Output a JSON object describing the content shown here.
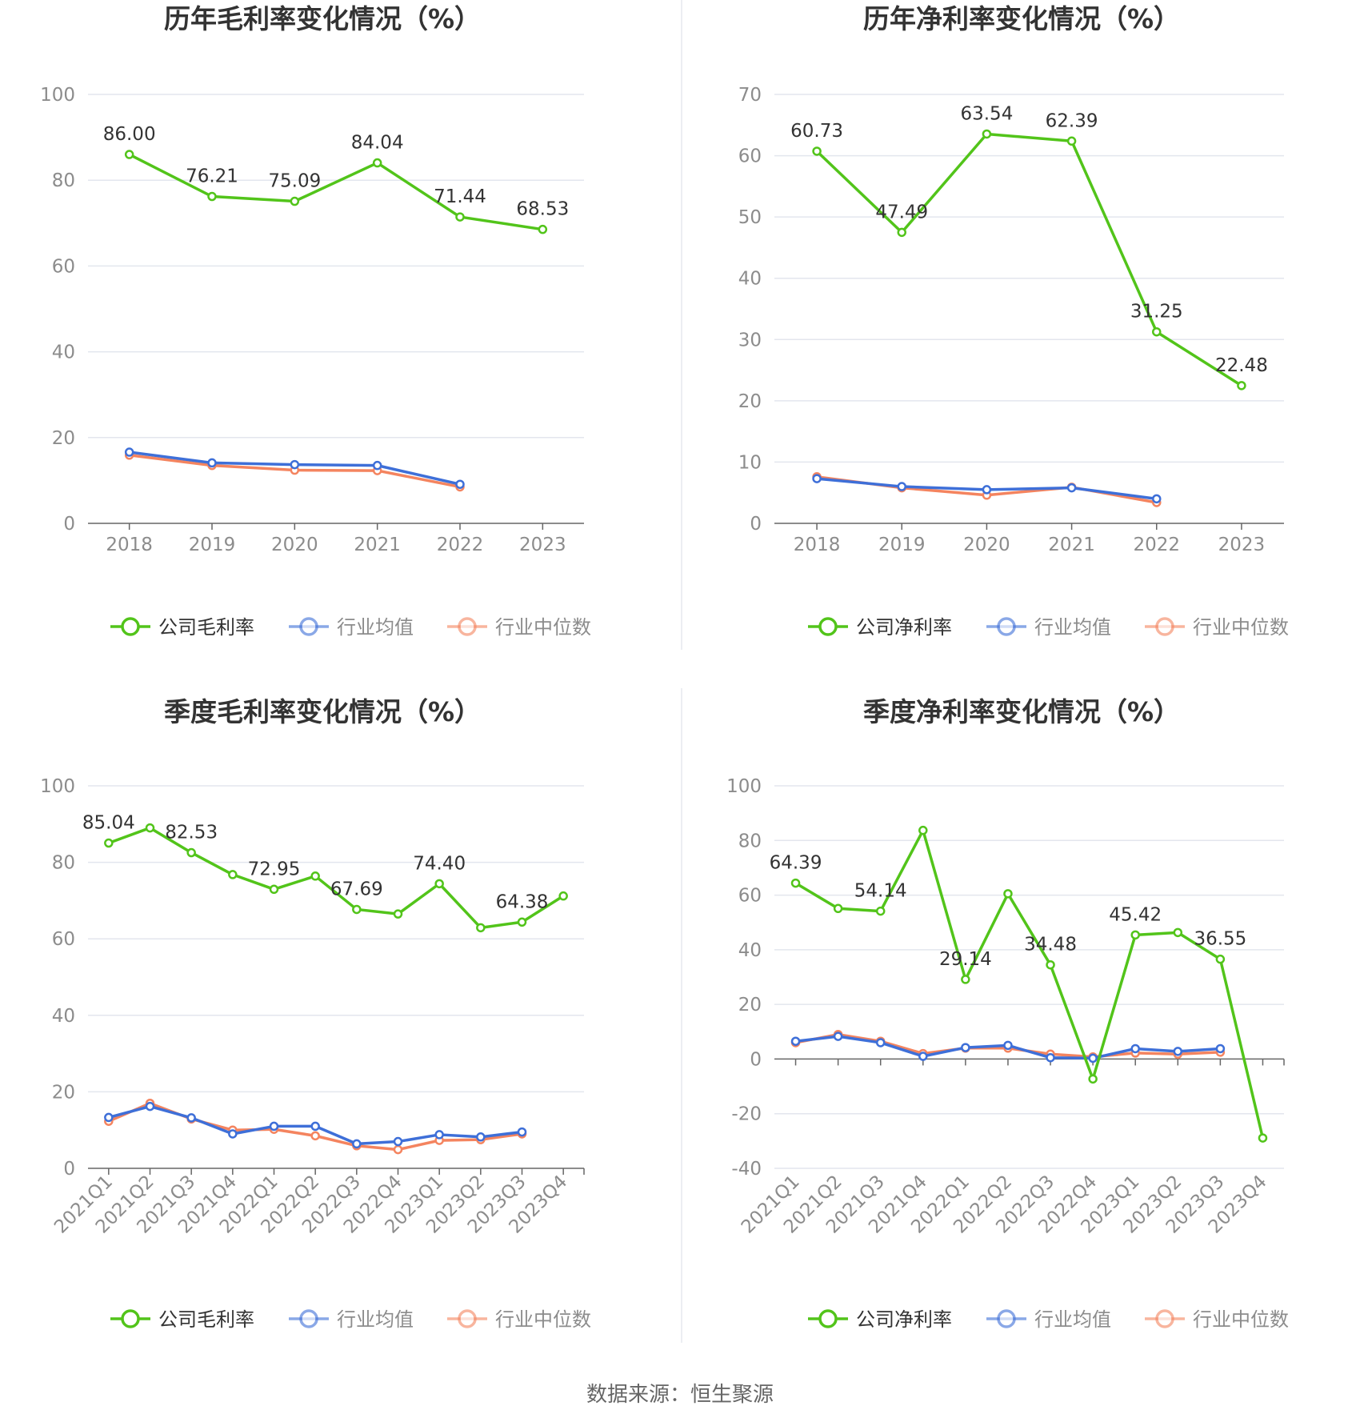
{
  "colors": {
    "company": "#52c41a",
    "industry_mean": "#3e6fd8",
    "industry_median": "#f4845f",
    "grid": "#e3e6ee",
    "axis": "#666666"
  },
  "source": "数据来源：恒生聚源",
  "chart_data": [
    {
      "type": "line",
      "title": "历年毛利率变化情况（%）",
      "categories": [
        "2018",
        "2019",
        "2020",
        "2021",
        "2022",
        "2023"
      ],
      "ylim": [
        0,
        100
      ],
      "yticks": [
        0,
        20,
        40,
        60,
        80,
        100
      ],
      "series": [
        {
          "name": "公司毛利率",
          "color": "#52c41a",
          "values": [
            86.0,
            76.21,
            75.09,
            84.04,
            71.44,
            68.53
          ],
          "labels": [
            "86.00",
            "76.21",
            "75.09",
            "84.04",
            "71.44",
            "68.53"
          ]
        },
        {
          "name": "行业均值",
          "color": "#3e6fd8",
          "values": [
            16.6,
            14.1,
            13.7,
            13.5,
            9.1,
            null
          ]
        },
        {
          "name": "行业中位数",
          "color": "#f4845f",
          "values": [
            15.9,
            13.5,
            12.4,
            12.3,
            8.5,
            null
          ]
        }
      ]
    },
    {
      "type": "line",
      "title": "历年净利率变化情况（%）",
      "categories": [
        "2018",
        "2019",
        "2020",
        "2021",
        "2022",
        "2023"
      ],
      "ylim": [
        0,
        70
      ],
      "yticks": [
        0,
        10,
        20,
        30,
        40,
        50,
        60,
        70
      ],
      "series": [
        {
          "name": "公司净利率",
          "color": "#52c41a",
          "values": [
            60.73,
            47.49,
            63.54,
            62.39,
            31.25,
            22.48
          ],
          "labels": [
            "60.73",
            "47.49",
            "63.54",
            "62.39",
            "31.25",
            "22.48"
          ]
        },
        {
          "name": "行业均值",
          "color": "#3e6fd8",
          "values": [
            7.3,
            6.0,
            5.5,
            5.8,
            4.0,
            null
          ]
        },
        {
          "name": "行业中位数",
          "color": "#f4845f",
          "values": [
            7.6,
            5.8,
            4.6,
            5.9,
            3.4,
            null
          ]
        }
      ]
    },
    {
      "type": "line",
      "title": "季度毛利率变化情况（%）",
      "categories": [
        "2021Q1",
        "2021Q2",
        "2021Q3",
        "2021Q4",
        "2022Q1",
        "2022Q2",
        "2022Q3",
        "2022Q4",
        "2023Q1",
        "2023Q2",
        "2023Q3",
        "2023Q4"
      ],
      "ylim": [
        0,
        100
      ],
      "yticks": [
        0,
        20,
        40,
        60,
        80,
        100
      ],
      "series": [
        {
          "name": "公司毛利率",
          "color": "#52c41a",
          "values": [
            85.04,
            89.0,
            82.53,
            76.8,
            72.95,
            76.4,
            67.69,
            66.5,
            74.4,
            62.9,
            64.38,
            71.2
          ],
          "labels": [
            "85.04",
            "",
            "82.53",
            "",
            "72.95",
            "",
            "67.69",
            "",
            "74.40",
            "",
            "64.38",
            ""
          ]
        },
        {
          "name": "行业均值",
          "color": "#3e6fd8",
          "values": [
            13.3,
            16.2,
            13.2,
            9.0,
            11.0,
            11.0,
            6.4,
            7.0,
            8.8,
            8.2,
            9.5,
            null
          ]
        },
        {
          "name": "行业中位数",
          "color": "#f4845f",
          "values": [
            12.3,
            17.0,
            12.9,
            10.0,
            10.2,
            8.5,
            5.9,
            4.9,
            7.3,
            7.5,
            9.0,
            null
          ]
        }
      ]
    },
    {
      "type": "line",
      "title": "季度净利率变化情况（%）",
      "categories": [
        "2021Q1",
        "2021Q2",
        "2021Q3",
        "2021Q4",
        "2022Q1",
        "2022Q2",
        "2022Q3",
        "2022Q4",
        "2023Q1",
        "2023Q2",
        "2023Q3",
        "2023Q4"
      ],
      "ylim": [
        -40,
        100
      ],
      "yticks": [
        -40,
        -20,
        0,
        20,
        40,
        60,
        80,
        100
      ],
      "series": [
        {
          "name": "公司净利率",
          "color": "#52c41a",
          "values": [
            64.39,
            55.1,
            54.14,
            83.7,
            29.14,
            60.5,
            34.48,
            -7.3,
            45.42,
            46.3,
            36.55,
            -28.9
          ],
          "labels": [
            "64.39",
            "",
            "54.14",
            "",
            "29.14",
            "",
            "34.48",
            "",
            "45.42",
            "",
            "36.55",
            ""
          ]
        },
        {
          "name": "行业均值",
          "color": "#3e6fd8",
          "values": [
            6.5,
            8.3,
            6.0,
            1.0,
            4.2,
            5.0,
            0.5,
            0.3,
            3.8,
            2.8,
            3.8,
            null
          ]
        },
        {
          "name": "行业中位数",
          "color": "#f4845f",
          "values": [
            6.0,
            9.0,
            6.5,
            2.0,
            4.0,
            4.0,
            1.8,
            0.8,
            2.2,
            1.8,
            2.5,
            null
          ]
        }
      ]
    }
  ]
}
